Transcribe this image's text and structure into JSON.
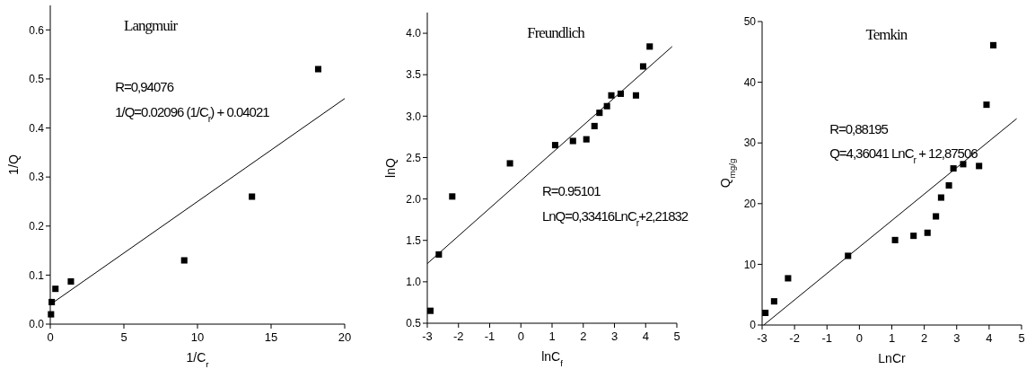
{
  "chart_data": [
    {
      "type": "scatter",
      "title": "Langmuir",
      "xlabel": "1/C$_{r}$",
      "ylabel": "1/Q",
      "xlim": [
        0,
        20
      ],
      "ylim": [
        0,
        0.65
      ],
      "xticks": [
        0,
        5,
        10,
        15,
        20
      ],
      "yticks": [
        {
          "value": 0,
          "label": "0.0"
        },
        0.1,
        0.2,
        0.3,
        0.4,
        0.5,
        0.6
      ],
      "marker": "square",
      "grid": false,
      "series": [
        {
          "color": "#000000",
          "x": [
            0.05,
            0.1,
            0.35,
            1.4,
            9.1,
            13.7,
            18.2
          ],
          "values": [
            0.02,
            0.045,
            0.072,
            0.087,
            0.13,
            0.26,
            0.52
          ]
        },
        {
          "type": "line",
          "color": "#000000",
          "marker": "none",
          "x": [
            0,
            20
          ],
          "values": [
            0.04,
            0.46
          ]
        }
      ],
      "annotations": [
        "R=0,94076",
        "1/Q=0.02096 (1/C$_{r}$) + 0.04021"
      ]
    },
    {
      "type": "scatter",
      "title": "Freundlich",
      "xlabel": "lnC$_{f}$",
      "ylabel": "lnQ",
      "xlim": [
        -3,
        5
      ],
      "ylim": [
        0.5,
        4.25
      ],
      "xticks": [
        -3,
        -2,
        -1,
        0,
        1,
        2,
        3,
        4,
        5
      ],
      "yticks": [
        0.5,
        {
          "value": 1,
          "label": "1.0"
        },
        1.5,
        {
          "value": 2,
          "label": "2.0"
        },
        2.5,
        {
          "value": 3,
          "label": "3.0"
        },
        3.5,
        {
          "value": 4,
          "label": "4.0"
        }
      ],
      "marker": "square",
      "grid": false,
      "series": [
        {
          "color": "#000000",
          "x": [
            -2.9,
            -2.63,
            -2.2,
            -0.35,
            1.1,
            1.67,
            2.1,
            2.36,
            2.52,
            2.76,
            2.9,
            3.2,
            3.69,
            3.92,
            4.13
          ],
          "values": [
            0.65,
            1.33,
            2.03,
            2.43,
            2.65,
            2.7,
            2.72,
            2.88,
            3.04,
            3.12,
            3.25,
            3.27,
            3.25,
            3.6,
            3.84
          ]
        },
        {
          "type": "line",
          "color": "#000000",
          "marker": "none",
          "x": [
            -3,
            4.85
          ],
          "values": [
            1.22,
            3.84
          ]
        }
      ],
      "annotations": [
        "R=0.95101",
        "LnQ=0,33416LnC$_{r}$+2,21832"
      ]
    },
    {
      "type": "scatter",
      "title": "Temkin",
      "xlabel": "LnCr",
      "ylabel": "Q$_{mg/g}$",
      "xlim": [
        -3,
        5
      ],
      "ylim": [
        0,
        50
      ],
      "xticks": [
        -3,
        -2,
        -1,
        0,
        1,
        2,
        3,
        4,
        5
      ],
      "yticks": [
        0,
        10,
        20,
        30,
        40,
        50
      ],
      "marker": "square",
      "grid": false,
      "series": [
        {
          "color": "#000000",
          "x": [
            -2.9,
            -2.63,
            -2.2,
            -0.35,
            1.1,
            1.67,
            2.1,
            2.36,
            2.52,
            2.76,
            2.9,
            3.2,
            3.69,
            3.92,
            4.13
          ],
          "values": [
            2,
            3.9,
            7.7,
            11.4,
            14,
            14.7,
            15.2,
            17.9,
            21,
            23,
            25.8,
            26.5,
            26.2,
            36.3,
            46.1
          ]
        },
        {
          "type": "line",
          "color": "#000000",
          "marker": "none",
          "x": [
            -2.95,
            4.85
          ],
          "values": [
            0,
            34
          ]
        }
      ],
      "annotations": [
        "R=0,88195",
        "Q=4,36041 LnC$_{r}$ + 12,87506"
      ]
    }
  ]
}
